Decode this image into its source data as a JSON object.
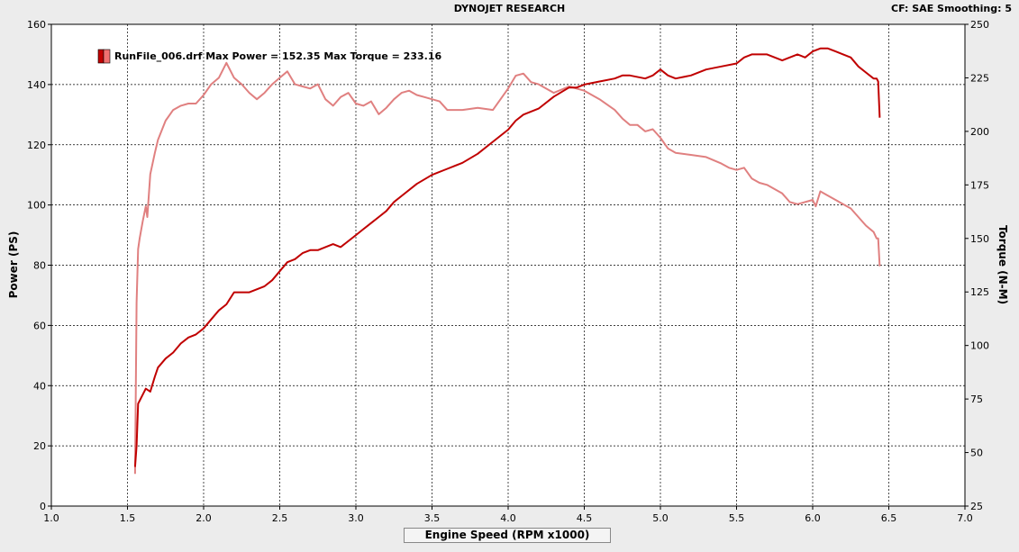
{
  "header": {
    "title": "DYNOJET RESEARCH",
    "corner": "CF: SAE  Smoothing: 5"
  },
  "chart_data": {
    "type": "line",
    "title": "DYNOJET RESEARCH",
    "xlabel": "Engine Speed (RPM x1000)",
    "ylabel": "Power (PS)",
    "y2label": "Torque (N-M)",
    "xlim": [
      1.0,
      7.0
    ],
    "ylim": [
      0,
      160
    ],
    "y2lim": [
      25,
      250
    ],
    "xticks": [
      "1.0",
      "1.5",
      "2.0",
      "2.5",
      "3.0",
      "3.5",
      "4.0",
      "4.5",
      "5.0",
      "5.5",
      "6.0",
      "6.5",
      "7.0"
    ],
    "yticks": [
      "0",
      "20",
      "40",
      "60",
      "80",
      "100",
      "120",
      "140",
      "160"
    ],
    "y2ticks": [
      "25",
      "50",
      "75",
      "100",
      "125",
      "150",
      "175",
      "200",
      "225",
      "250"
    ],
    "grid": true,
    "legend": {
      "label": "RunFile_006.drf Max Power = 152.35 Max Torque = 233.16",
      "placement": "top-left"
    },
    "colors": {
      "power": "#c00000",
      "torque": "#e08080",
      "grid": "#000000"
    },
    "series": [
      {
        "name": "Power",
        "axis": "left",
        "x": [
          1.55,
          1.56,
          1.57,
          1.58,
          1.6,
          1.62,
          1.65,
          1.68,
          1.7,
          1.75,
          1.8,
          1.85,
          1.9,
          1.95,
          2.0,
          2.05,
          2.1,
          2.15,
          2.2,
          2.3,
          2.4,
          2.45,
          2.5,
          2.55,
          2.6,
          2.65,
          2.7,
          2.75,
          2.8,
          2.85,
          2.9,
          3.0,
          3.05,
          3.1,
          3.15,
          3.2,
          3.25,
          3.3,
          3.4,
          3.5,
          3.6,
          3.7,
          3.8,
          3.9,
          4.0,
          4.05,
          4.1,
          4.2,
          4.3,
          4.4,
          4.45,
          4.5,
          4.6,
          4.7,
          4.75,
          4.8,
          4.9,
          4.95,
          5.0,
          5.05,
          5.1,
          5.2,
          5.3,
          5.4,
          5.5,
          5.55,
          5.6,
          5.7,
          5.8,
          5.9,
          5.95,
          6.0,
          6.05,
          6.1,
          6.15,
          6.2,
          6.25,
          6.3,
          6.35,
          6.4,
          6.42,
          6.43,
          6.44
        ],
        "values": [
          13,
          20,
          34,
          35,
          37,
          39,
          38,
          43,
          46,
          49,
          51,
          54,
          56,
          57,
          59,
          62,
          65,
          67,
          71,
          71,
          73,
          75,
          78,
          81,
          82,
          84,
          85,
          85,
          86,
          87,
          86,
          90,
          92,
          94,
          96,
          98,
          101,
          103,
          107,
          110,
          112,
          114,
          117,
          121,
          125,
          128,
          130,
          132,
          136,
          139,
          139,
          140,
          141,
          142,
          143,
          143,
          142,
          143,
          145,
          143,
          142,
          143,
          145,
          146,
          147,
          149,
          150,
          150,
          148,
          150,
          149,
          151,
          152,
          152,
          151,
          150,
          149,
          146,
          144,
          142,
          142,
          141,
          129
        ]
      },
      {
        "name": "Torque",
        "axis": "right",
        "x": [
          1.55,
          1.56,
          1.57,
          1.58,
          1.6,
          1.62,
          1.63,
          1.65,
          1.68,
          1.7,
          1.75,
          1.8,
          1.85,
          1.9,
          1.95,
          2.0,
          2.05,
          2.1,
          2.15,
          2.2,
          2.25,
          2.3,
          2.35,
          2.4,
          2.45,
          2.5,
          2.55,
          2.6,
          2.65,
          2.7,
          2.75,
          2.8,
          2.85,
          2.9,
          2.95,
          3.0,
          3.05,
          3.1,
          3.15,
          3.2,
          3.25,
          3.3,
          3.35,
          3.4,
          3.45,
          3.5,
          3.55,
          3.6,
          3.7,
          3.8,
          3.9,
          4.0,
          4.05,
          4.1,
          4.15,
          4.2,
          4.3,
          4.4,
          4.5,
          4.6,
          4.7,
          4.75,
          4.8,
          4.85,
          4.9,
          4.95,
          5.0,
          5.05,
          5.1,
          5.2,
          5.3,
          5.4,
          5.45,
          5.5,
          5.55,
          5.6,
          5.65,
          5.7,
          5.8,
          5.85,
          5.9,
          5.95,
          6.0,
          6.02,
          6.05,
          6.1,
          6.15,
          6.2,
          6.25,
          6.3,
          6.35,
          6.4,
          6.42,
          6.43,
          6.44
        ],
        "values": [
          40,
          120,
          145,
          150,
          158,
          165,
          160,
          180,
          190,
          196,
          205,
          210,
          212,
          213,
          213,
          217,
          222,
          225,
          232,
          225,
          222,
          218,
          215,
          218,
          222,
          225,
          228,
          222,
          221,
          220,
          222,
          215,
          212,
          216,
          218,
          213,
          212,
          214,
          208,
          211,
          215,
          218,
          219,
          217,
          216,
          215,
          214,
          210,
          210,
          211,
          210,
          220,
          226,
          227,
          223,
          222,
          218,
          221,
          219,
          215,
          210,
          206,
          203,
          203,
          200,
          201,
          197,
          192,
          190,
          189,
          188,
          185,
          183,
          182,
          183,
          178,
          176,
          175,
          171,
          167,
          166,
          167,
          168,
          165,
          172,
          170,
          168,
          166,
          164,
          160,
          156,
          153,
          150,
          150,
          137
        ]
      }
    ]
  }
}
